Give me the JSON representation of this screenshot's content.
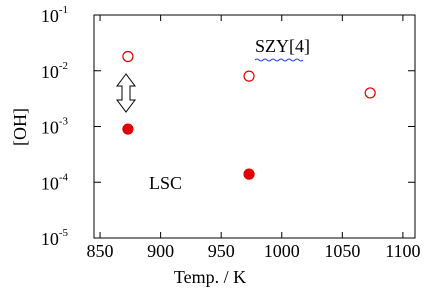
{
  "chart_data": {
    "type": "scatter",
    "log_y": true,
    "x_label": "Temp. / K",
    "y_label": "[OH]",
    "xlim": [
      845,
      1110
    ],
    "xticks": [
      850,
      900,
      950,
      1000,
      1050,
      1100
    ],
    "ylim": [
      1e-05,
      0.1
    ],
    "yticks": [
      {
        "value": 0.1,
        "label": "10",
        "power": "-1"
      },
      {
        "value": 0.01,
        "label": "10",
        "power": "-2"
      },
      {
        "value": 0.001,
        "label": "10",
        "power": "-3"
      },
      {
        "value": 0.0001,
        "label": "10",
        "power": "-4"
      },
      {
        "value": 1e-05,
        "label": "10",
        "power": "-5"
      }
    ],
    "series": [
      {
        "name": "SZY[4]",
        "color": "#e00000",
        "filled": false,
        "x": [
          873,
          973,
          1073
        ],
        "values": [
          0.018,
          0.008,
          0.004
        ]
      },
      {
        "name": "LSC",
        "color": "#e00000",
        "filled": true,
        "x": [
          873,
          973
        ],
        "values": [
          0.0009,
          0.00014
        ]
      }
    ]
  }
}
